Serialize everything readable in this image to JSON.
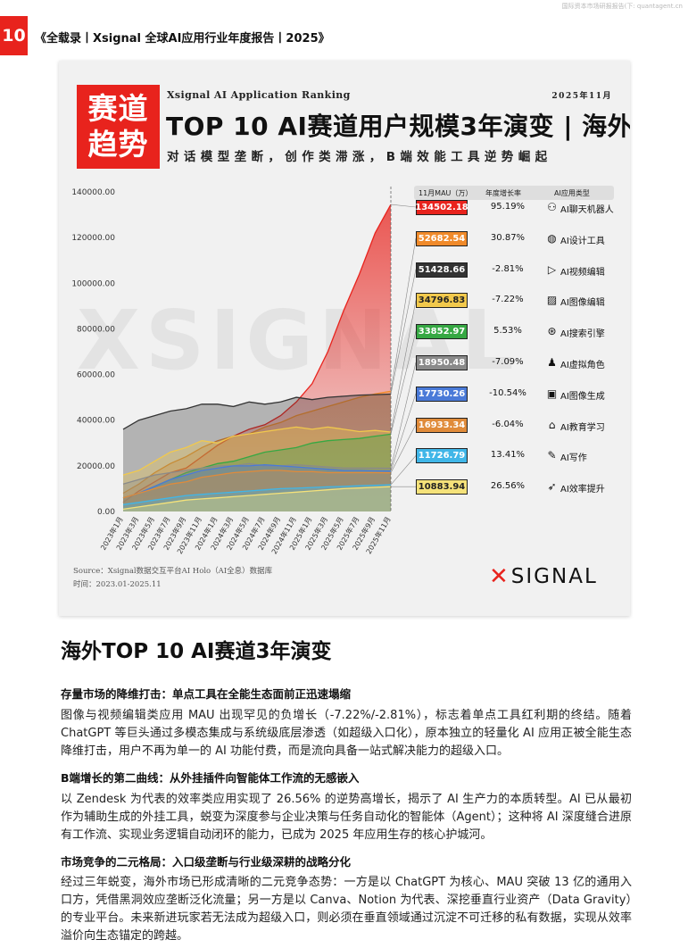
{
  "watermark": "国际资本市场研报报告(下: quantagent.cn",
  "page_number": "10",
  "running_head": "《全载录丨Xsignal 全球AI应用行业年度报告丨2025》",
  "seal_line1": "赛道",
  "seal_line2": "趋势",
  "kicker": "Xsignal AI Application Ranking",
  "date": "2025年11月",
  "chart_title": "TOP 10 AI赛道用户规模3年演变 | 海外",
  "chart_subtitle": "对话模型垄断，创作类滞涨，B端效能工具逆势崛起",
  "source_line1": "Source：Xsignal数据交互平台AI Holo（AI全息）数据库",
  "source_line2": "时间：2023.01-2025.11",
  "brand_x": "✕",
  "brand_word": "SIGNAL",
  "bg_watermark": "XSIGNAL",
  "table_header": {
    "mau": "11月MAU（万）",
    "growth": "年度增长率",
    "category": "AI应用类型"
  },
  "chart_data": {
    "type": "area",
    "x": [
      "2023年1月",
      "2023年3月",
      "2023年5月",
      "2023年7月",
      "2023年9月",
      "2023年11月",
      "2024年1月",
      "2024年3月",
      "2024年5月",
      "2024年7月",
      "2024年9月",
      "2024年11月",
      "2025年1月",
      "2025年3月",
      "2025年5月",
      "2025年7月",
      "2025年9月",
      "2025年11月"
    ],
    "y_ticks": [
      "140000.00",
      "120000.00",
      "100000.00",
      "80000.00",
      "60000.00",
      "40000.00",
      "20000.00",
      "0.00"
    ],
    "ylim": [
      0,
      140000
    ],
    "series": [
      {
        "name": "AI聊天机器人",
        "color": "#e8231d",
        "values": [
          4000,
          9000,
          13000,
          17000,
          19000,
          24000,
          29000,
          33000,
          36000,
          38000,
          42000,
          48000,
          56000,
          70000,
          88000,
          104000,
          122000,
          134502.18
        ]
      },
      {
        "name": "AI设计工具",
        "color": "#f08a2a",
        "values": [
          8000,
          12000,
          17000,
          21000,
          24000,
          28000,
          31000,
          33000,
          34000,
          37000,
          39000,
          42000,
          44000,
          46000,
          48000,
          50000,
          51500,
          52682.54
        ]
      },
      {
        "name": "AI视频编辑",
        "color": "#333333",
        "values": [
          36000,
          40000,
          42000,
          44000,
          45000,
          47000,
          47000,
          46000,
          48000,
          47000,
          48000,
          50000,
          49000,
          50000,
          50500,
          51000,
          51200,
          51428.66
        ]
      },
      {
        "name": "AI图像编辑",
        "color": "#f2c94c",
        "values": [
          16000,
          18000,
          22000,
          26000,
          28000,
          31000,
          30000,
          33000,
          34000,
          35000,
          36000,
          37000,
          36000,
          37000,
          36000,
          35000,
          35500,
          34796.83
        ]
      },
      {
        "name": "AI搜索引擎",
        "color": "#36a843",
        "values": [
          6000,
          8000,
          11000,
          14000,
          17000,
          19000,
          21000,
          22000,
          24000,
          26000,
          27000,
          28000,
          30000,
          31000,
          31500,
          32000,
          33000,
          33852.97
        ]
      },
      {
        "name": "AI虚拟角色",
        "color": "#8a8a8a",
        "values": [
          12000,
          14000,
          16000,
          17000,
          18000,
          19000,
          20000,
          20000,
          21000,
          20000,
          20000,
          20500,
          20000,
          19500,
          19000,
          19000,
          19000,
          18950.48
        ]
      },
      {
        "name": "AI图像生成",
        "color": "#4a7ad8",
        "values": [
          6000,
          8000,
          11000,
          14000,
          16000,
          18000,
          19000,
          20000,
          20000,
          20500,
          20000,
          19500,
          19000,
          18500,
          18000,
          18000,
          17800,
          17730.26
        ]
      },
      {
        "name": "AI教育学习",
        "color": "#e08b3a",
        "values": [
          6000,
          8000,
          10000,
          12000,
          13000,
          15000,
          16000,
          17000,
          17500,
          18000,
          18000,
          17500,
          17500,
          17000,
          17000,
          17000,
          17000,
          16933.34
        ]
      },
      {
        "name": "AI写作",
        "color": "#40b6e8",
        "values": [
          3000,
          4000,
          5000,
          6000,
          7000,
          7500,
          8000,
          8500,
          9000,
          9500,
          10000,
          10200,
          10500,
          10800,
          11000,
          11300,
          11500,
          11726.79
        ]
      },
      {
        "name": "AI效率提升",
        "color": "#f5e27a",
        "values": [
          1000,
          2000,
          3000,
          4000,
          5000,
          5500,
          6000,
          6500,
          7000,
          7500,
          8000,
          8500,
          9000,
          9500,
          10000,
          10300,
          10600,
          10883.94
        ]
      }
    ]
  },
  "rows": [
    {
      "mau": "134502.18",
      "growth": "95.19%",
      "icon": "robot-icon",
      "glyph": "⚇",
      "label": "AI聊天机器人",
      "color": "#e8231d",
      "text_color": "#ffffff"
    },
    {
      "mau": "52682.54",
      "growth": "30.87%",
      "icon": "palette-icon",
      "glyph": "◍",
      "label": "AI设计工具",
      "color": "#f08a2a",
      "text_color": "#ffffff"
    },
    {
      "mau": "51428.66",
      "growth": "-2.81%",
      "icon": "video-icon",
      "glyph": "▷",
      "label": "AI视频编辑",
      "color": "#333333",
      "text_color": "#ffffff"
    },
    {
      "mau": "34796.83",
      "growth": "-7.22%",
      "icon": "image-edit-icon",
      "glyph": "▨",
      "label": "AI图像编辑",
      "color": "#f2c94c",
      "text_color": "#222222"
    },
    {
      "mau": "33852.97",
      "growth": "5.53%",
      "icon": "search-engine-icon",
      "glyph": "⊛",
      "label": "AI搜索引擎",
      "color": "#36a843",
      "text_color": "#ffffff"
    },
    {
      "mau": "18950.48",
      "growth": "-7.09%",
      "icon": "avatar-icon",
      "glyph": "♟",
      "label": "AI虚拟角色",
      "color": "#8a8a8a",
      "text_color": "#ffffff"
    },
    {
      "mau": "17730.26",
      "growth": "-10.54%",
      "icon": "image-gen-icon",
      "glyph": "▣",
      "label": "AI图像生成",
      "color": "#4a7ad8",
      "text_color": "#ffffff"
    },
    {
      "mau": "16933.34",
      "growth": "-6.04%",
      "icon": "graduation-icon",
      "glyph": "⌂",
      "label": "AI教育学习",
      "color": "#e08b3a",
      "text_color": "#ffffff"
    },
    {
      "mau": "11726.79",
      "growth": "13.41%",
      "icon": "pen-icon",
      "glyph": "✎",
      "label": "AI写作",
      "color": "#40b6e8",
      "text_color": "#ffffff"
    },
    {
      "mau": "10883.94",
      "growth": "26.56%",
      "icon": "rocket-icon",
      "glyph": "➶",
      "label": "AI效率提升",
      "color": "#f5e27a",
      "text_color": "#222222"
    }
  ],
  "section_title": "海外TOP 10 AI赛道3年演变",
  "sections": [
    {
      "heading": "存量市场的降维打击：单点工具在全能生态面前正迅速塌缩",
      "body": "图像与视频编辑类应用 MAU 出现罕见的负增长（-7.22%/-2.81%），标志着单点工具红利期的终结。随着 ChatGPT 等巨头通过多模态集成与系统级底层渗透（如超级入口化），原本独立的轻量化 AI 应用正被全能生态降维打击，用户不再为单一的 AI 功能付费，而是流向具备一站式解决能力的超级入口。"
    },
    {
      "heading": "B端增长的第二曲线：从外挂插件向智能体工作流的无感嵌入",
      "body": "以 Zendesk 为代表的效率类应用实现了 26.56% 的逆势高增长，揭示了 AI 生产力的本质转型。AI 已从最初作为辅助生成的外挂工具，蜕变为深度参与企业决策与任务自动化的智能体（Agent）；这种将 AI 深度缝合进原有工作流、实现业务逻辑自动闭环的能力，已成为 2025 年应用生存的核心护城河。"
    },
    {
      "heading": "市场竞争的二元格局：入口级垄断与行业级深耕的战略分化",
      "body": "经过三年蜕变，海外市场已形成清晰的二元竞争态势：一方是以 ChatGPT 为核心、MAU 突破 13 亿的通用入口方，凭借黑洞效应垄断泛化流量；另一方是以 Canva、Notion 为代表、深挖垂直行业资产（Data Gravity）的专业平台。未来新进玩家若无法成为超级入口，则必须在垂直领域通过沉淀不可迁移的私有数据，实现从效率溢价向生态锚定的跨越。"
    }
  ]
}
